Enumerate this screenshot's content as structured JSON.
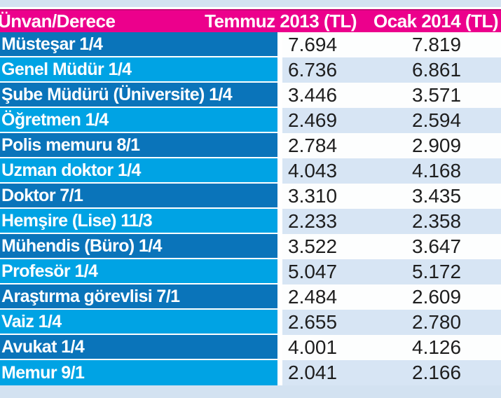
{
  "table": {
    "columns": [
      "Ünvan/Derece",
      "Temmuz 2013 (TL)",
      "Ocak 2014 (TL)"
    ],
    "rows": [
      {
        "label": "Müsteşar 1/4",
        "temmuz_2013": "7.694",
        "ocak_2014": "7.819"
      },
      {
        "label": "Genel Müdür 1/4",
        "temmuz_2013": "6.736",
        "ocak_2014": "6.861"
      },
      {
        "label": "Şube Müdürü (Üniversite) 1/4",
        "temmuz_2013": "3.446",
        "ocak_2014": "3.571"
      },
      {
        "label": "Öğretmen 1/4",
        "temmuz_2013": "2.469",
        "ocak_2014": "2.594"
      },
      {
        "label": "Polis memuru 8/1",
        "temmuz_2013": "2.784",
        "ocak_2014": "2.909"
      },
      {
        "label": "Uzman doktor 1/4",
        "temmuz_2013": "4.043",
        "ocak_2014": "4.168"
      },
      {
        "label": "Doktor 7/1",
        "temmuz_2013": "3.310",
        "ocak_2014": "3.435"
      },
      {
        "label": "Hemşire (Lise) 11/3",
        "temmuz_2013": "2.233",
        "ocak_2014": "2.358"
      },
      {
        "label": "Mühendis (Büro) 1/4",
        "temmuz_2013": "3.522",
        "ocak_2014": "3.647"
      },
      {
        "label": "Profesör 1/4",
        "temmuz_2013": "5.047",
        "ocak_2014": "5.172"
      },
      {
        "label": "Araştırma görevlisi 7/1",
        "temmuz_2013": "2.484",
        "ocak_2014": "2.609"
      },
      {
        "label": "Vaiz 1/4",
        "temmuz_2013": "2.655",
        "ocak_2014": "2.780"
      },
      {
        "label": "Avukat 1/4",
        "temmuz_2013": "4.001",
        "ocak_2014": "4.126"
      },
      {
        "label": "Memur 9/1",
        "temmuz_2013": "2.041",
        "ocak_2014": "2.166"
      }
    ]
  },
  "colors": {
    "page_bg": "#d3e2f1",
    "header_bg": "#ec008c",
    "header_top_line": "#c90677",
    "row_dark_blue": "#0a74ba",
    "row_light_blue": "#00a3e4",
    "value_bg_white": "#fdfefe",
    "value_bg_light": "#d7e5f4",
    "value_text": "#1e1e1e",
    "divider_white": "#ffffff"
  },
  "chart_data": {
    "type": "table",
    "columns": [
      "Ünvan/Derece",
      "Temmuz 2013 (TL)",
      "Ocak 2014 (TL)"
    ],
    "rows": [
      [
        "Müsteşar 1/4",
        7694,
        7819
      ],
      [
        "Genel Müdür 1/4",
        6736,
        6861
      ],
      [
        "Şube Müdürü (Üniversite) 1/4",
        3446,
        3571
      ],
      [
        "Öğretmen 1/4",
        2469,
        2594
      ],
      [
        "Polis memuru 8/1",
        2784,
        2909
      ],
      [
        "Uzman doktor 1/4",
        4043,
        4168
      ],
      [
        "Doktor 7/1",
        3310,
        3435
      ],
      [
        "Hemşire (Lise) 11/3",
        2233,
        2358
      ],
      [
        "Mühendis (Büro) 1/4",
        3522,
        3647
      ],
      [
        "Profesör 1/4",
        5047,
        5172
      ],
      [
        "Araştırma görevlisi 7/1",
        2484,
        2609
      ],
      [
        "Vaiz 1/4",
        2655,
        2780
      ],
      [
        "Avukat 1/4",
        4001,
        4126
      ],
      [
        "Memur 9/1",
        2041,
        2166
      ]
    ],
    "layout_hints": {
      "header_style": "magenta band, white bold text",
      "row_label_style": "alternating dark/light blue bands, white bold text",
      "value_style": "alternating white / pale blue bands, dark regular text",
      "number_format": "thousands separated by dot (Turkish)"
    }
  }
}
